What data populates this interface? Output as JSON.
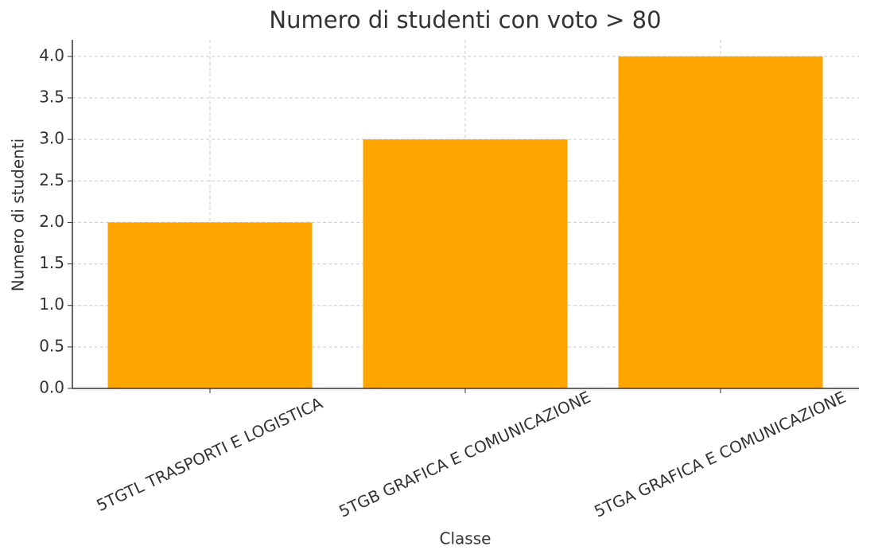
{
  "chart_data": {
    "type": "bar",
    "title": "Numero di studenti con voto > 80",
    "x_label": "Classe",
    "y_label": "Numero di studenti",
    "categories": [
      "5TGTL TRASPORTI E LOGISTICA",
      "5TGB GRAFICA E COMUNICAZIONE",
      "5TGA GRAFICA E COMUNICAZIONE"
    ],
    "values": [
      2,
      3,
      4
    ],
    "color": "#ffa500",
    "ylim": [
      0,
      4.2
    ],
    "yticks": [
      {
        "value": 0,
        "label": "0.0"
      },
      0.5,
      {
        "value": 1,
        "label": "1.0"
      },
      1.5,
      {
        "value": 2,
        "label": "2.0"
      },
      2.5,
      {
        "value": 3,
        "label": "3.0"
      },
      3.5,
      {
        "value": 4,
        "label": "4.0"
      }
    ],
    "grid": true
  }
}
